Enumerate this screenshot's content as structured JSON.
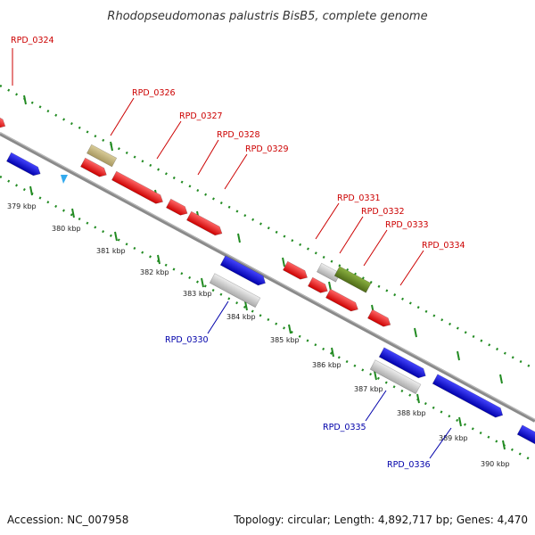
{
  "title": "Rhodopseudomonas palustris BisB5, complete genome",
  "footer": {
    "accession": "Accession: NC_007958",
    "summary": "Topology: circular; Length: 4,892,717 bp; Genes: 4,470"
  },
  "colors": {
    "plus_strand_label": "#cc0000",
    "minus_strand_label": "#0000aa",
    "backbone": "#8a8a8a",
    "tick_dots": "#228b22",
    "gene_red": "#ff0000",
    "gene_blue": "#0000ee",
    "gene_grey": "#cfcfcf",
    "gene_tan": "#c2b27a",
    "gene_olive": "#6b8e23",
    "orf_marker": "#33aaee"
  },
  "axis": {
    "kbp_labels": [
      "379 kbp",
      "380 kbp",
      "381 kbp",
      "382 kbp",
      "383 kbp",
      "384 kbp",
      "385 kbp",
      "386 kbp",
      "387 kbp",
      "388 kbp",
      "389 kbp",
      "390 kbp"
    ]
  },
  "gene_labels": {
    "plus": [
      "RPD_0324",
      "RPD_0326",
      "RPD_0327",
      "RPD_0328",
      "RPD_0329",
      "RPD_0331",
      "RPD_0332",
      "RPD_0333",
      "RPD_0334"
    ],
    "minus": [
      "RPD_0330",
      "RPD_0335",
      "RPD_0336"
    ]
  }
}
